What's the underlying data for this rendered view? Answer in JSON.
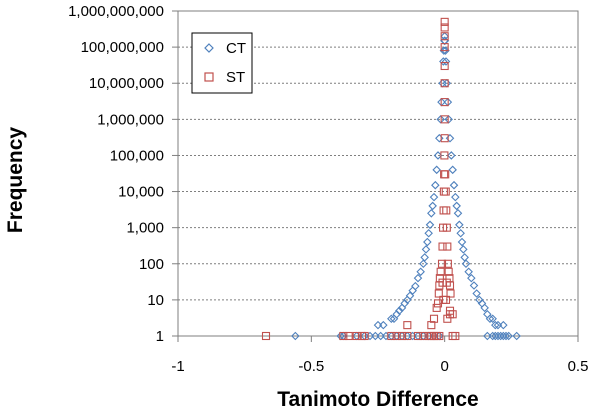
{
  "chart_data": {
    "type": "scatter",
    "title": "",
    "xlabel": "Tanimoto Difference",
    "ylabel": "Frequency",
    "xlim": [
      -1,
      0.5
    ],
    "ylim": [
      1,
      1000000000
    ],
    "yscale": "log",
    "grid": "horizontal dotted",
    "legend_position": "top-left",
    "x_ticks": [
      {
        "value": -1,
        "label": "-1"
      },
      {
        "value": -0.5,
        "label": "-0.5"
      },
      {
        "value": 0,
        "label": "0"
      },
      {
        "value": 0.5,
        "label": "0.5"
      }
    ],
    "y_ticks": [
      {
        "value": 1,
        "label": "1"
      },
      {
        "value": 10,
        "label": "10"
      },
      {
        "value": 100,
        "label": "100"
      },
      {
        "value": 1000,
        "label": "1,000"
      },
      {
        "value": 10000,
        "label": "10,000"
      },
      {
        "value": 100000,
        "label": "100,000"
      },
      {
        "value": 1000000,
        "label": "1,000,000"
      },
      {
        "value": 10000000,
        "label": "10,000,000"
      },
      {
        "value": 100000000,
        "label": "100,000,000"
      },
      {
        "value": 1000000000,
        "label": "1,000,000,000"
      }
    ],
    "series": [
      {
        "name": "CT",
        "marker": "diamond",
        "color": "#4F81BD",
        "points": [
          [
            -0.56,
            1
          ],
          [
            -0.39,
            1
          ],
          [
            -0.38,
            1
          ],
          [
            -0.33,
            1
          ],
          [
            -0.3,
            1
          ],
          [
            -0.28,
            1
          ],
          [
            -0.26,
            1
          ],
          [
            -0.24,
            1
          ],
          [
            -0.22,
            1
          ],
          [
            -0.2,
            1
          ],
          [
            -0.18,
            1
          ],
          [
            -0.16,
            1
          ],
          [
            -0.14,
            1
          ],
          [
            -0.12,
            1
          ],
          [
            -0.1,
            1
          ],
          [
            -0.08,
            1
          ],
          [
            -0.06,
            1
          ],
          [
            -0.04,
            1
          ],
          [
            -0.02,
            1
          ],
          [
            0.16,
            1
          ],
          [
            0.18,
            1
          ],
          [
            0.19,
            1
          ],
          [
            0.2,
            1
          ],
          [
            0.21,
            1
          ],
          [
            0.22,
            1
          ],
          [
            0.23,
            1
          ],
          [
            0.24,
            1
          ],
          [
            0.27,
            1
          ],
          [
            -0.25,
            2
          ],
          [
            -0.23,
            2
          ],
          [
            -0.2,
            3
          ],
          [
            -0.19,
            3
          ],
          [
            -0.18,
            4
          ],
          [
            -0.17,
            5
          ],
          [
            -0.16,
            6
          ],
          [
            -0.15,
            8
          ],
          [
            -0.14,
            10
          ],
          [
            -0.13,
            13
          ],
          [
            -0.12,
            18
          ],
          [
            -0.11,
            24
          ],
          [
            -0.1,
            40
          ],
          [
            -0.09,
            60
          ],
          [
            -0.08,
            100
          ],
          [
            -0.075,
            150
          ],
          [
            -0.07,
            250
          ],
          [
            -0.065,
            400
          ],
          [
            -0.06,
            700
          ],
          [
            -0.055,
            1200
          ],
          [
            -0.05,
            2500
          ],
          [
            -0.045,
            4000
          ],
          [
            -0.04,
            7000
          ],
          [
            -0.035,
            15000
          ],
          [
            -0.03,
            40000
          ],
          [
            -0.025,
            100000
          ],
          [
            -0.02,
            300000
          ],
          [
            -0.015,
            1000000
          ],
          [
            -0.012,
            3000000
          ],
          [
            -0.008,
            10000000
          ],
          [
            -0.005,
            40000000
          ],
          [
            -0.003,
            80000000
          ],
          [
            -0.001,
            150000000
          ],
          [
            0,
            200000000
          ],
          [
            0.001,
            150000000
          ],
          [
            0.003,
            80000000
          ],
          [
            0.005,
            40000000
          ],
          [
            0.008,
            10000000
          ],
          [
            0.012,
            3000000
          ],
          [
            0.015,
            1000000
          ],
          [
            0.02,
            300000
          ],
          [
            0.025,
            100000
          ],
          [
            0.03,
            40000
          ],
          [
            0.035,
            15000
          ],
          [
            0.04,
            7000
          ],
          [
            0.045,
            4000
          ],
          [
            0.05,
            2500
          ],
          [
            0.055,
            1200
          ],
          [
            0.06,
            700
          ],
          [
            0.065,
            400
          ],
          [
            0.07,
            250
          ],
          [
            0.075,
            150
          ],
          [
            0.08,
            100
          ],
          [
            0.09,
            60
          ],
          [
            0.1,
            40
          ],
          [
            0.11,
            25
          ],
          [
            0.12,
            15
          ],
          [
            0.13,
            10
          ],
          [
            0.14,
            8
          ],
          [
            0.15,
            6
          ],
          [
            0.16,
            4
          ],
          [
            0.17,
            3
          ],
          [
            0.18,
            3
          ],
          [
            0.19,
            2
          ],
          [
            0.2,
            2
          ],
          [
            0.22,
            2
          ]
        ]
      },
      {
        "name": "ST",
        "marker": "square",
        "color": "#C0504D",
        "points": [
          [
            -0.67,
            1
          ],
          [
            -0.38,
            1
          ],
          [
            -0.36,
            1
          ],
          [
            -0.33,
            1
          ],
          [
            -0.31,
            1
          ],
          [
            -0.3,
            1
          ],
          [
            -0.2,
            1
          ],
          [
            -0.18,
            1
          ],
          [
            -0.16,
            1
          ],
          [
            -0.14,
            1
          ],
          [
            -0.1,
            1
          ],
          [
            -0.08,
            1
          ],
          [
            -0.06,
            1
          ],
          [
            -0.05,
            1
          ],
          [
            -0.04,
            1
          ],
          [
            -0.03,
            1
          ],
          [
            -0.02,
            1
          ],
          [
            0.03,
            1
          ],
          [
            0.04,
            1
          ],
          [
            -0.14,
            2
          ],
          [
            -0.05,
            2
          ],
          [
            -0.04,
            3
          ],
          [
            0.01,
            3
          ],
          [
            0.02,
            4
          ],
          [
            0.03,
            4
          ],
          [
            0.02,
            5
          ],
          [
            -0.005,
            10
          ],
          [
            0.005,
            10
          ],
          [
            -0.008,
            30
          ],
          [
            0.008,
            30
          ],
          [
            -0.01,
            100
          ],
          [
            -0.008,
            300
          ],
          [
            -0.006,
            1000
          ],
          [
            -0.004,
            3000
          ],
          [
            -0.003,
            10000
          ],
          [
            -0.002,
            30000
          ],
          [
            -0.001,
            100000
          ],
          [
            0,
            300000
          ],
          [
            0,
            1000000
          ],
          [
            0,
            3000000
          ],
          [
            0,
            10000000
          ],
          [
            0,
            30000000
          ],
          [
            0,
            100000000
          ],
          [
            0,
            200000000
          ],
          [
            0,
            350000000
          ],
          [
            0,
            500000000
          ],
          [
            0.002,
            30000
          ],
          [
            0.004,
            10000
          ],
          [
            0.006,
            3000
          ],
          [
            0.008,
            1000
          ],
          [
            0.01,
            300
          ],
          [
            0.012,
            100
          ],
          [
            0.015,
            60
          ],
          [
            0.018,
            40
          ],
          [
            0.02,
            25
          ],
          [
            0.022,
            15
          ],
          [
            -0.015,
            60
          ],
          [
            -0.018,
            40
          ],
          [
            -0.02,
            25
          ],
          [
            -0.022,
            15
          ],
          [
            -0.03,
            6
          ],
          [
            -0.025,
            8
          ]
        ]
      }
    ]
  }
}
